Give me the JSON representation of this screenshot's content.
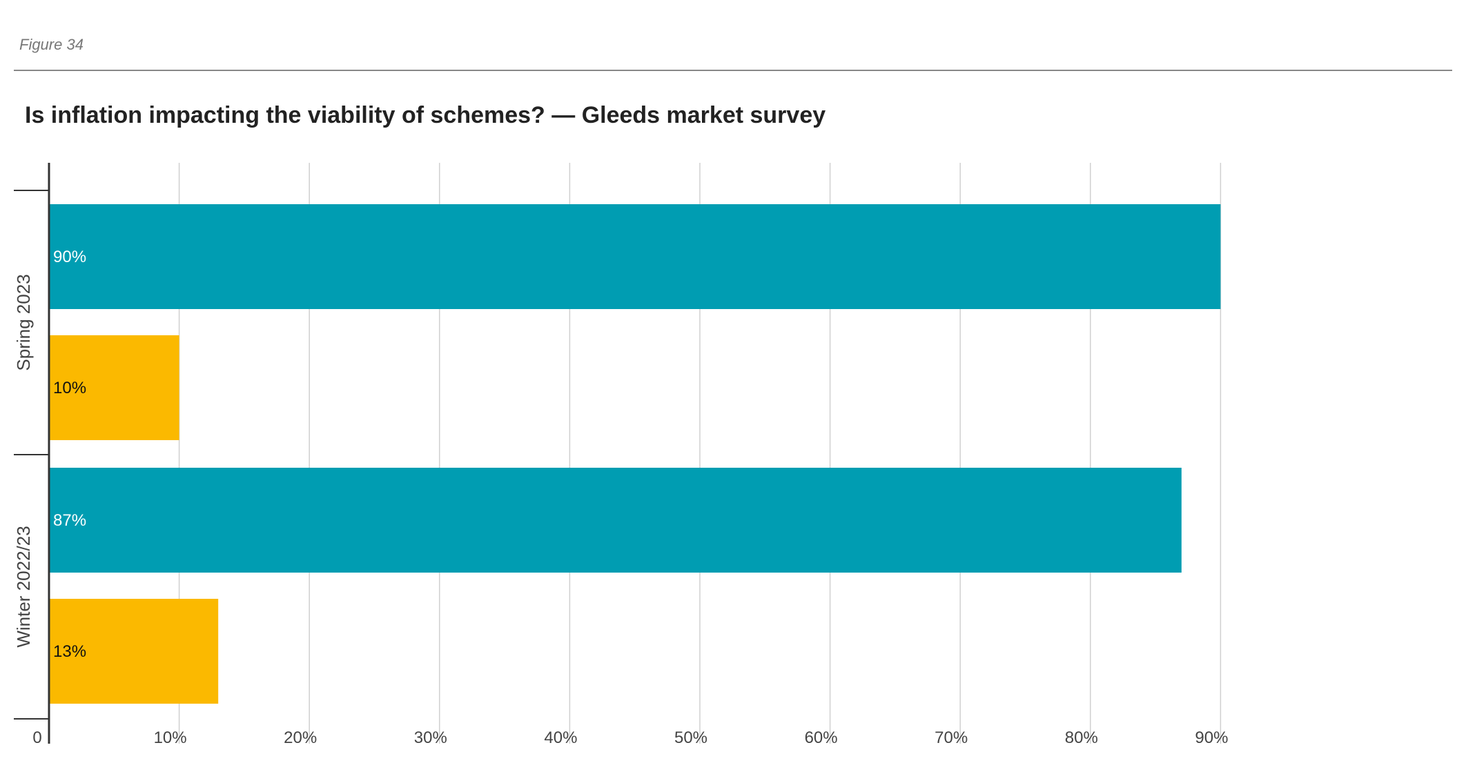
{
  "figure_label": "Figure 34",
  "chart_data": {
    "type": "bar",
    "orientation": "horizontal",
    "title": "Is inflation impacting the viability of schemes? — Gleeds market survey",
    "categories": [
      "Spring 2023",
      "Winter 2022/23"
    ],
    "bars": [
      {
        "category": "Spring 2023",
        "value": 90,
        "label": "90%",
        "color": "#009db2"
      },
      {
        "category": "Spring 2023",
        "value": 10,
        "label": "10%",
        "color": "#fbb900"
      },
      {
        "category": "Winter 2022/23",
        "value": 87,
        "label": "87%",
        "color": "#009db2"
      },
      {
        "category": "Winter 2022/23",
        "value": 13,
        "label": "13%",
        "color": "#fbb900"
      }
    ],
    "xlim": [
      0,
      90
    ],
    "x_ticks": [
      {
        "value": 0,
        "label": "0"
      },
      {
        "value": 10,
        "label": "10%"
      },
      {
        "value": 20,
        "label": "20%"
      },
      {
        "value": 30,
        "label": "30%"
      },
      {
        "value": 40,
        "label": "40%"
      },
      {
        "value": 50,
        "label": "50%"
      },
      {
        "value": 60,
        "label": "60%"
      },
      {
        "value": 70,
        "label": "70%"
      },
      {
        "value": 80,
        "label": "80%"
      },
      {
        "value": 90,
        "label": "90%"
      }
    ],
    "grid": true,
    "legend": "none",
    "colors": {
      "teal": "#009db2",
      "yellow": "#fbb900",
      "grid": "#d0d0d0",
      "axis": "#333333",
      "tick_text": "#444444"
    }
  }
}
